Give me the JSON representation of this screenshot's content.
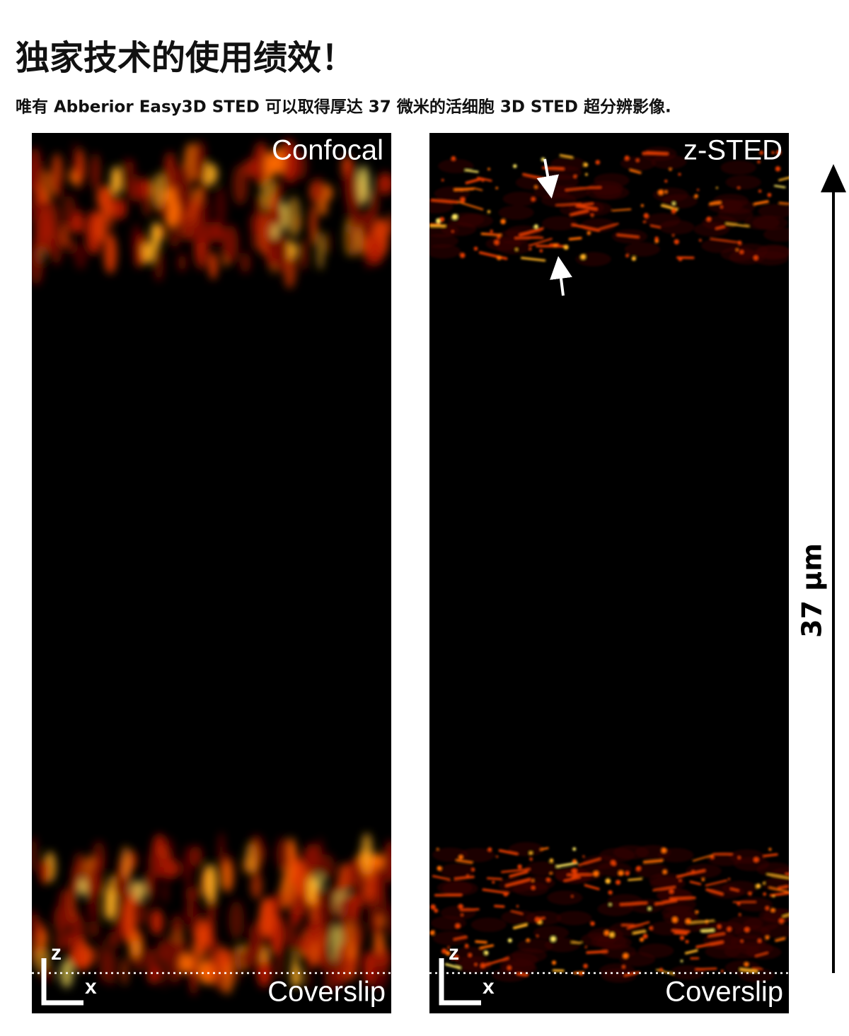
{
  "header": {
    "title": "独家技术的使用绩效！",
    "subtitle": "唯有 Abberior Easy3D STED 可以取得厚达 37 微米的活细胞 3D STED 超分辨影像."
  },
  "panels": [
    {
      "label": "Confocal",
      "bottom_label": "Coverslip",
      "axis_z": "z",
      "axis_x": "x"
    },
    {
      "label": "z-STED",
      "bottom_label": "Coverslip",
      "axis_z": "z",
      "axis_x": "x"
    }
  ],
  "scale_bar": {
    "label": "37 μm"
  }
}
